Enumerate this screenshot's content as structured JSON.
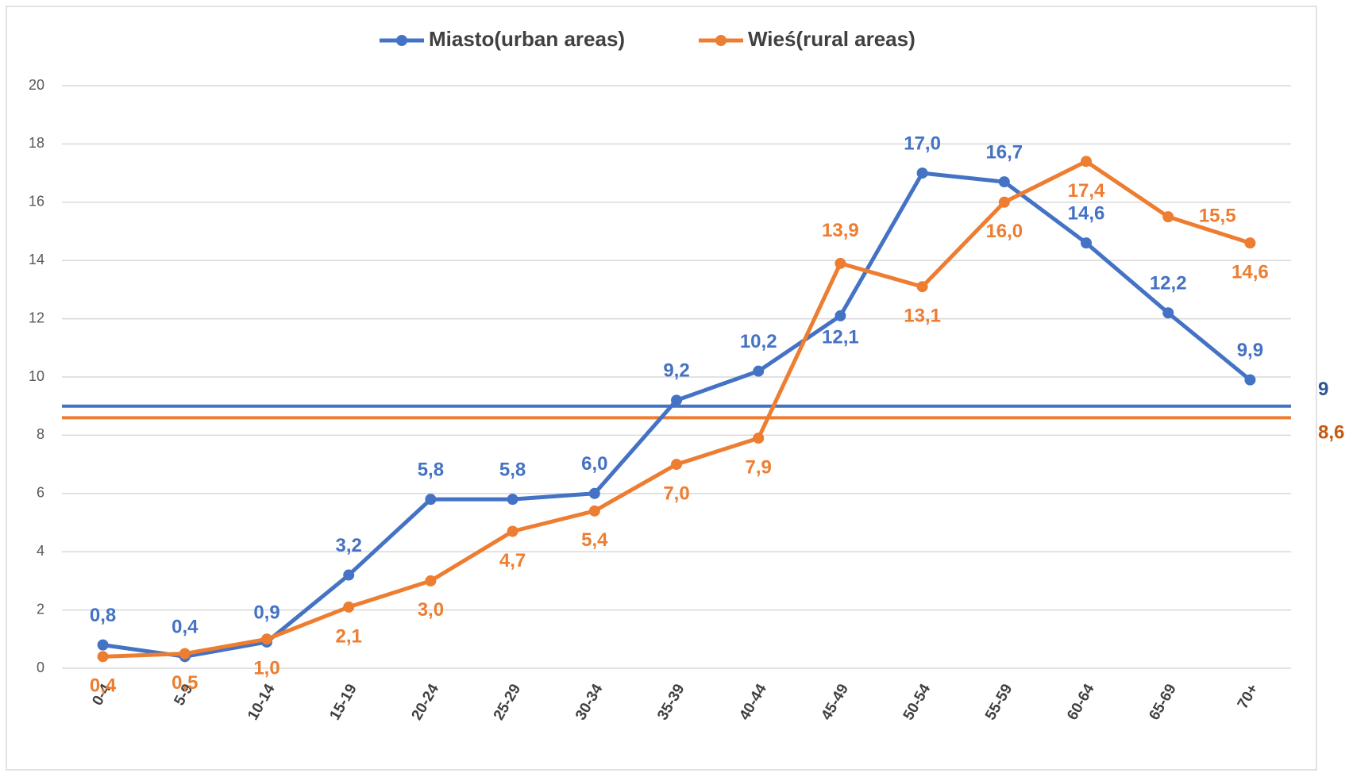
{
  "chart_data": {
    "type": "line",
    "categories": [
      "0-4",
      "5-9",
      "10-14",
      "15-19",
      "20-24",
      "25-29",
      "30-34",
      "35-39",
      "40-44",
      "45-49",
      "50-54",
      "55-59",
      "60-64",
      "65-69",
      "70+"
    ],
    "series": [
      {
        "name": "Miasto(urban areas)",
        "color": "#4472c4",
        "values": [
          0.8,
          0.4,
          0.9,
          3.2,
          5.8,
          5.8,
          6.0,
          9.2,
          10.2,
          12.1,
          17.0,
          16.7,
          14.6,
          12.2,
          9.9
        ],
        "value_labels": [
          "0,8",
          "0,4",
          "0,9",
          "3,2",
          "5,8",
          "5,8",
          "6,0",
          "9,2",
          "10,2",
          "12,1",
          "17,0",
          "16,7",
          "14,6",
          "12,2",
          "9,9"
        ]
      },
      {
        "name": "Wieś(rural areas)",
        "color": "#ed7d31",
        "values": [
          0.4,
          0.5,
          1.0,
          2.1,
          3.0,
          4.7,
          5.4,
          7.0,
          7.9,
          13.9,
          13.1,
          16.0,
          17.4,
          15.5,
          14.6
        ],
        "value_labels": [
          "0,4",
          "0,5",
          "1,0",
          "2,1",
          "3,0",
          "4,7",
          "5,4",
          "7,0",
          "7,9",
          "13,9",
          "13,1",
          "16,0",
          "17,4",
          "15,5",
          "14,6"
        ]
      }
    ],
    "reference_lines": [
      {
        "value": 9,
        "label": "9",
        "color": "#4472c4"
      },
      {
        "value": 8.6,
        "label": "8,6",
        "color": "#ed7d31"
      }
    ],
    "ylim": [
      0,
      20
    ],
    "yticks": [
      0,
      2,
      4,
      6,
      8,
      10,
      12,
      14,
      16,
      18,
      20
    ],
    "grid": true,
    "legend": "top"
  }
}
